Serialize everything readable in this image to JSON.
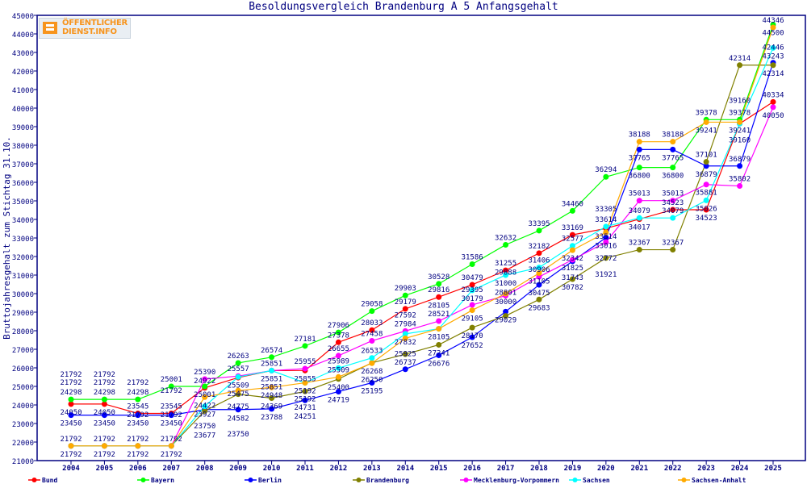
{
  "chart_data": {
    "type": "line",
    "title": "Besoldungsvergleich Brandenburg A 5 Anfangsgehalt",
    "xlabel": "",
    "ylabel": "Bruttojahresgehalt zum Stichtag 31.10.",
    "ylim": [
      21000,
      45000
    ],
    "ytick_step": 1000,
    "grid": false,
    "legend_position": "bottom",
    "x": [
      "2004",
      "2005",
      "2006",
      "2007",
      "2008",
      "2009",
      "2010",
      "2011",
      "2012",
      "2013",
      "2014",
      "2015",
      "2016",
      "2017",
      "2018",
      "2019",
      "2020",
      "2021",
      "2022",
      "2023",
      "2024",
      "2025"
    ],
    "series": [
      {
        "name": "Bund",
        "color": "#ff0000",
        "values": [
          24050,
          24050,
          23545,
          23545,
          24922,
          25475,
          25851,
          25855,
          27378,
          28033,
          29179,
          29816,
          30479,
          31255,
          32182,
          33169,
          33514,
          34017,
          34523,
          34523,
          39160,
          40334
        ]
      },
      {
        "name": "Bayern",
        "color": "#00ff00",
        "values": [
          24298,
          24298,
          24298,
          25001,
          25001,
          26263,
          26574,
          27181,
          27906,
          29058,
          29903,
          30528,
          31586,
          32632,
          33395,
          34460,
          36294,
          36800,
          36800,
          39378,
          39378,
          44500
        ]
      },
      {
        "name": "Berlin",
        "color": "#0000ff",
        "values": [
          23450,
          23450,
          23450,
          23450,
          23750,
          23750,
          23788,
          24251,
          24719,
          25195,
          25925,
          26676,
          27652,
          29029,
          30475,
          31743,
          33016,
          37765,
          37765,
          36879,
          36879,
          42446
        ]
      },
      {
        "name": "Brandenburg",
        "color": "#808000",
        "values": [
          21792,
          21792,
          21792,
          21792,
          23677,
          24582,
          24369,
          24731,
          25400,
          26268,
          26737,
          27241,
          28170,
          28801,
          29683,
          30782,
          31921,
          32367,
          32367,
          37101,
          42314,
          42314
        ]
      },
      {
        "name": "Mecklenburg-Vorpommern",
        "color": "#ff00ff",
        "values": [
          21792,
          21792,
          21792,
          21792,
          25390,
          25557,
          25851,
          25955,
          26655,
          27458,
          27984,
          28521,
          29395,
          29888,
          30906,
          31825,
          32772,
          35013,
          35013,
          35881,
          35802,
          40050
        ]
      },
      {
        "name": "Sachsen",
        "color": "#00ffff",
        "values": [
          21792,
          21792,
          21792,
          21792,
          23927,
          25509,
          25851,
          25192,
          25989,
          26533,
          27832,
          28105,
          30179,
          31000,
          31406,
          32577,
          33614,
          34079,
          34079,
          35026,
          39160,
          43243
        ]
      },
      {
        "name": "Sachsen-Anhalt",
        "color": "#ffaa00",
        "values": [
          21792,
          21792,
          21792,
          21792,
          24422,
          24775,
          24948,
          25192,
          25509,
          26250,
          27592,
          28105,
          29105,
          30000,
          31105,
          32342,
          33305,
          38188,
          38188,
          39241,
          39241,
          44346
        ]
      }
    ]
  },
  "logo": {
    "line1": "ÖFFENTLICHER",
    "line2": "DIENST.INFO"
  }
}
